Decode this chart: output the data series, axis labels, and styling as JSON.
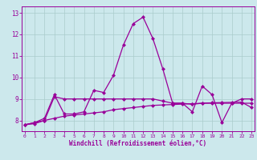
{
  "xlabel": "Windchill (Refroidissement éolien,°C)",
  "x": [
    0,
    1,
    2,
    3,
    4,
    5,
    6,
    7,
    8,
    9,
    10,
    11,
    12,
    13,
    14,
    15,
    16,
    17,
    18,
    19,
    20,
    21,
    22,
    23
  ],
  "line1": [
    7.8,
    7.9,
    8.1,
    9.2,
    8.3,
    8.3,
    8.4,
    9.4,
    9.3,
    10.1,
    11.5,
    12.5,
    12.8,
    11.8,
    10.4,
    8.8,
    8.8,
    8.4,
    9.6,
    9.2,
    7.9,
    8.8,
    8.8,
    8.8
  ],
  "line2": [
    7.8,
    7.9,
    8.0,
    9.1,
    9.0,
    9.0,
    9.0,
    9.0,
    9.0,
    9.0,
    9.0,
    9.0,
    9.0,
    9.0,
    8.9,
    8.8,
    8.8,
    8.75,
    8.8,
    8.8,
    8.8,
    8.8,
    9.0,
    9.0
  ],
  "line3": [
    7.8,
    7.85,
    8.0,
    8.1,
    8.2,
    8.25,
    8.3,
    8.35,
    8.4,
    8.5,
    8.55,
    8.6,
    8.65,
    8.7,
    8.72,
    8.74,
    8.76,
    8.78,
    8.8,
    8.82,
    8.83,
    8.84,
    8.85,
    8.6
  ],
  "line_color": "#990099",
  "bg_color": "#cce8ec",
  "grid_color": "#aacccc",
  "ylim": [
    7.5,
    13.3
  ],
  "xlim": [
    -0.3,
    23.3
  ],
  "yticks": [
    8,
    9,
    10,
    11,
    12,
    13
  ],
  "xticks": [
    0,
    1,
    2,
    3,
    4,
    5,
    6,
    7,
    8,
    9,
    10,
    11,
    12,
    13,
    14,
    15,
    16,
    17,
    18,
    19,
    20,
    21,
    22,
    23
  ],
  "xtick_labels": [
    "0",
    "1",
    "2",
    "3",
    "4",
    "5",
    "6",
    "7",
    "8",
    "9",
    "10",
    "11",
    "12",
    "13",
    "14",
    "15",
    "16",
    "17",
    "18",
    "19",
    "20",
    "21",
    "22",
    "23"
  ]
}
